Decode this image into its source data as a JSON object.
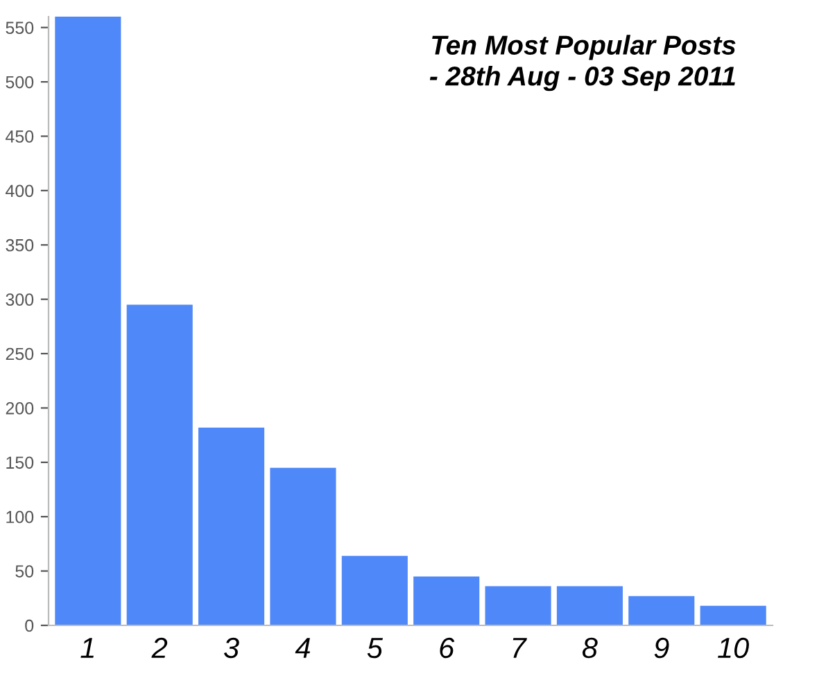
{
  "chart_data": {
    "type": "bar",
    "title": "Ten Most Popular Posts\n - 28th Aug - 03 Sep 2011",
    "categories": [
      "1",
      "2",
      "3",
      "4",
      "5",
      "6",
      "7",
      "8",
      "9",
      "10"
    ],
    "values": [
      560,
      295,
      182,
      145,
      64,
      45,
      36,
      36,
      27,
      18
    ],
    "color": "#4f88f8",
    "ylim": [
      0,
      560
    ],
    "yticks": [
      0,
      50,
      100,
      150,
      200,
      250,
      300,
      350,
      400,
      450,
      500,
      550
    ],
    "grid": false,
    "legend": false
  }
}
